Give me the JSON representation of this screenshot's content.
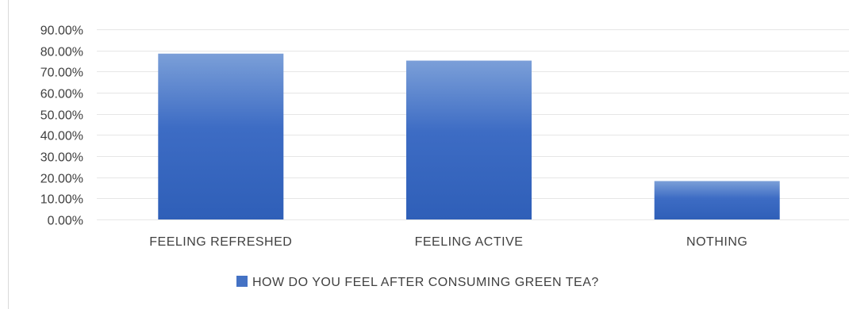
{
  "chart_data": {
    "type": "bar",
    "title": "",
    "xlabel": "",
    "ylabel": "",
    "categories": [
      "FEELING REFRESHED",
      "FEELING ACTIVE",
      "NOTHING"
    ],
    "series": [
      {
        "name": "HOW DO YOU FEEL AFTER CONSUMING GREEN TEA?",
        "values": [
          78.5,
          75.2,
          18.2
        ],
        "color": "#4472c4"
      }
    ],
    "ylim": [
      0,
      90
    ],
    "y_ticks": [
      "0.00%",
      "10.00%",
      "20.00%",
      "30.00%",
      "40.00%",
      "50.00%",
      "60.00%",
      "70.00%",
      "80.00%",
      "90.00%"
    ],
    "y_tick_values": [
      0,
      10,
      20,
      30,
      40,
      50,
      60,
      70,
      80,
      90
    ],
    "grid": true,
    "legend_position": "bottom",
    "colors": {
      "bar_light": "#7b9fd8",
      "bar_dark": "#2f5fb8",
      "grid": "#e6e6e6",
      "text": "#404040"
    }
  }
}
